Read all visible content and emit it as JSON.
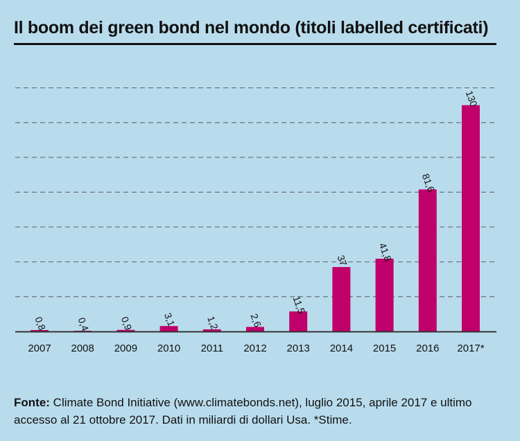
{
  "title": "Il boom dei green bond nel mondo (titoli labelled certificati)",
  "source": {
    "label": "Fonte:",
    "text": "Climate Bond Initiative (www.climatebonds.net), luglio 2015, aprile 2017 e ultimo accesso al 21 ottobre 2017. Dati in miliardi di dollari Usa. *Stime."
  },
  "colors": {
    "background": "#b9dced",
    "bar": "#c0006b",
    "grid": "#6e7a80",
    "text": "#111111"
  },
  "chart_data": {
    "type": "bar",
    "title": "Il boom dei green bond nel mondo (titoli labelled certificati)",
    "xlabel": "",
    "ylabel": "",
    "categories": [
      "2007",
      "2008",
      "2009",
      "2010",
      "2011",
      "2012",
      "2013",
      "2014",
      "2015",
      "2016",
      "2017*"
    ],
    "values": [
      0.8,
      0.4,
      0.9,
      3.1,
      1.2,
      2.6,
      11.5,
      37,
      41.8,
      81.6,
      130
    ],
    "value_labels": [
      "0,8",
      "0,4",
      "0,9",
      "3,1",
      "1,2",
      "2,6",
      "11,5",
      "37",
      "41,8",
      "81,6",
      "130"
    ],
    "ylim": [
      0,
      140
    ],
    "grid": true,
    "grid_step": 20,
    "legend": "none"
  }
}
